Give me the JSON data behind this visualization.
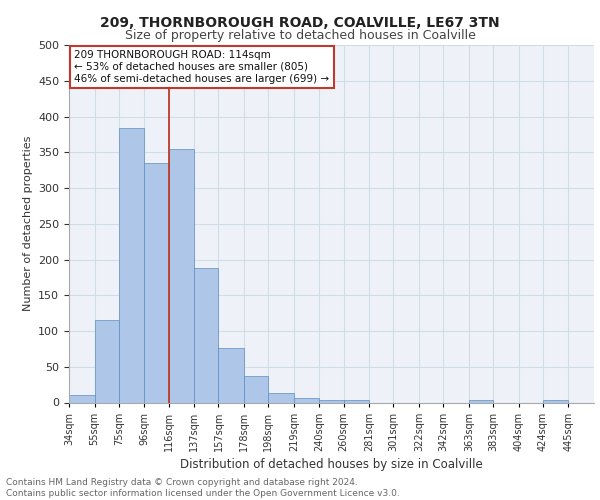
{
  "title1": "209, THORNBOROUGH ROAD, COALVILLE, LE67 3TN",
  "title2": "Size of property relative to detached houses in Coalville",
  "xlabel": "Distribution of detached houses by size in Coalville",
  "ylabel": "Number of detached properties",
  "footnote": "Contains HM Land Registry data © Crown copyright and database right 2024.\nContains public sector information licensed under the Open Government Licence v3.0.",
  "bin_labels": [
    "34sqm",
    "55sqm",
    "75sqm",
    "96sqm",
    "116sqm",
    "137sqm",
    "157sqm",
    "178sqm",
    "198sqm",
    "219sqm",
    "240sqm",
    "260sqm",
    "281sqm",
    "301sqm",
    "322sqm",
    "342sqm",
    "363sqm",
    "383sqm",
    "404sqm",
    "424sqm",
    "445sqm"
  ],
  "bar_values": [
    11,
    115,
    384,
    335,
    354,
    188,
    76,
    37,
    13,
    6,
    4,
    4,
    0,
    0,
    0,
    0,
    3,
    0,
    0,
    4,
    0
  ],
  "bar_color": "#aec6e8",
  "bar_edge_color": "#5a8fc2",
  "grid_color": "#d0dce8",
  "background_color": "#eef2f8",
  "annotation_line_color": "#c0392b",
  "annotation_box_text": "209 THORNBOROUGH ROAD: 114sqm\n← 53% of detached houses are smaller (805)\n46% of semi-detached houses are larger (699) →",
  "annotation_box_color": "#c0392b",
  "ylim": [
    0,
    500
  ],
  "yticks": [
    0,
    50,
    100,
    150,
    200,
    250,
    300,
    350,
    400,
    450,
    500
  ],
  "bin_edges": [
    34,
    55,
    75,
    96,
    116,
    137,
    157,
    178,
    198,
    219,
    240,
    260,
    281,
    301,
    322,
    342,
    363,
    383,
    404,
    424,
    445,
    466
  ]
}
